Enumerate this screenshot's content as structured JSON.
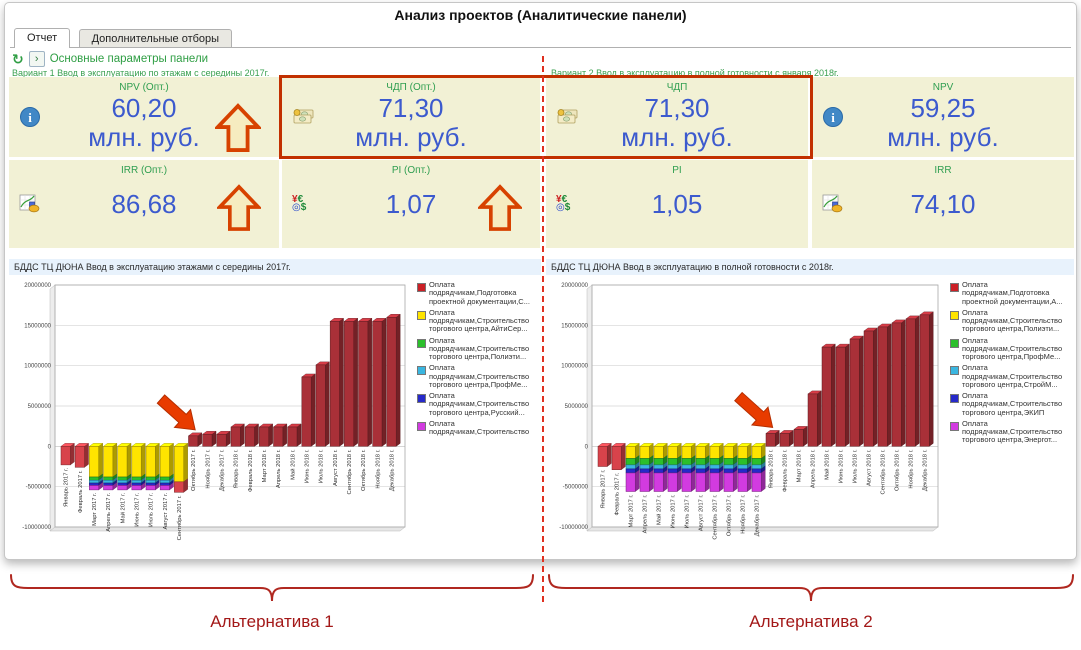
{
  "window": {
    "title": "Анализ проектов (Аналитические панели)"
  },
  "tabs": [
    {
      "label": "Отчет",
      "active": true
    },
    {
      "label": "Дополнительные отборы",
      "active": false
    }
  ],
  "toolbar": {
    "refresh_glyph": "↻",
    "expand_glyph": "›",
    "panel_params_label": "Основные параметры панели"
  },
  "variants": {
    "v1": "Вариант 1 Ввод в эксплуатацию по этажам с середины 2017г.",
    "v2": "Вариант 2 Ввод в эксплуатацию в полной готовности с января 2018г."
  },
  "kpis": [
    {
      "label": "NPV (Опт.)",
      "value": "60,20",
      "unit": "млн. руб.",
      "icon": "info",
      "arrow": true
    },
    {
      "label": "ЧДП (Опт.)",
      "value": "71,30",
      "unit": "млн. руб.",
      "icon": "money",
      "arrow": false
    },
    {
      "label": "ЧДП",
      "value": "71,30",
      "unit": "млн. руб.",
      "icon": "money",
      "arrow": false
    },
    {
      "label": "NPV",
      "value": "59,25",
      "unit": "млн. руб.",
      "icon": "info",
      "arrow": false
    },
    {
      "label": "IRR (Опт.)",
      "value": "86,68",
      "icon": "chart",
      "arrow": true
    },
    {
      "label": "PI (Опт.)",
      "value": "1,07",
      "icon": "currency",
      "arrow": true
    },
    {
      "label": "PI",
      "value": "1,05",
      "icon": "currency",
      "arrow": false
    },
    {
      "label": "IRR",
      "value": "74,10",
      "icon": "chart",
      "arrow": false
    }
  ],
  "footer": {
    "alt1": "Альтернатива 1",
    "alt2": "Альтернатива 2"
  },
  "colors": {
    "accent_green": "#2f9e44",
    "value_blue": "#3c5ace",
    "highlight_border": "#c23000",
    "divider_red": "#e03020",
    "arrow": "#e83b00",
    "brace": "#b02820",
    "palette": {
      "red": "#d8434b",
      "dark": "#a93038",
      "yellow": "#ffe400",
      "green": "#2bbf2b",
      "cyan": "#3ab6e0",
      "blue": "#2629c9",
      "magenta": "#d23be0"
    }
  },
  "chart_data": [
    {
      "type": "bar3d-stacked",
      "title": "БДДС ТЦ ДЮНА Ввод в эксплуатацию этажами с середины 2017г.",
      "ylim": [
        -10000000,
        20000000
      ],
      "yticks": [
        20000000,
        15000000,
        10000000,
        5000000,
        0,
        -5000000,
        -10000000
      ],
      "grid": true,
      "legend_position": "right",
      "arrow_index": 9,
      "bars": [
        {
          "m": "Январь 2017 г.",
          "v": [
            [
              "red",
              -2300000
            ]
          ]
        },
        {
          "m": "Февраль 2017 г.",
          "v": [
            [
              "red",
              -2600000
            ]
          ]
        },
        {
          "m": "Март 2017 г.",
          "v": [
            [
              "yellow",
              -3800000
            ],
            [
              "green",
              -400000
            ],
            [
              "cyan",
              -350000
            ],
            [
              "blue",
              -300000
            ],
            [
              "magenta",
              -550000
            ]
          ]
        },
        {
          "m": "Апрель 2017 г.",
          "v": [
            [
              "yellow",
              -3800000
            ],
            [
              "green",
              -400000
            ],
            [
              "cyan",
              -350000
            ],
            [
              "blue",
              -300000
            ],
            [
              "magenta",
              -550000
            ]
          ]
        },
        {
          "m": "Май 2017 г.",
          "v": [
            [
              "yellow",
              -3800000
            ],
            [
              "green",
              -400000
            ],
            [
              "cyan",
              -350000
            ],
            [
              "blue",
              -300000
            ],
            [
              "magenta",
              -550000
            ]
          ]
        },
        {
          "m": "Июнь 2017 г.",
          "v": [
            [
              "yellow",
              -3800000
            ],
            [
              "green",
              -400000
            ],
            [
              "cyan",
              -350000
            ],
            [
              "blue",
              -300000
            ],
            [
              "magenta",
              -550000
            ]
          ]
        },
        {
          "m": "Июль 2017 г.",
          "v": [
            [
              "yellow",
              -3800000
            ],
            [
              "green",
              -400000
            ],
            [
              "cyan",
              -350000
            ],
            [
              "blue",
              -300000
            ],
            [
              "magenta",
              -550000
            ]
          ]
        },
        {
          "m": "Август 2017 г.",
          "v": [
            [
              "yellow",
              -3800000
            ],
            [
              "green",
              -400000
            ],
            [
              "cyan",
              -350000
            ],
            [
              "blue",
              -300000
            ],
            [
              "magenta",
              -550000
            ]
          ]
        },
        {
          "m": "Сентябрь 2017 г.",
          "v": [
            [
              "yellow",
              -4400000
            ],
            [
              "red",
              -1300000
            ]
          ]
        },
        {
          "m": "Октябрь 2017 г.",
          "v": [
            [
              "dark",
              1300000
            ]
          ]
        },
        {
          "m": "Ноябрь 2017 г.",
          "v": [
            [
              "dark",
              1500000
            ]
          ]
        },
        {
          "m": "Декабрь 2017 г.",
          "v": [
            [
              "dark",
              1500000
            ]
          ]
        },
        {
          "m": "Январь 2018 г.",
          "v": [
            [
              "dark",
              2400000
            ]
          ]
        },
        {
          "m": "Февраль 2018 г.",
          "v": [
            [
              "dark",
              2400000
            ]
          ]
        },
        {
          "m": "Март 2018 г.",
          "v": [
            [
              "dark",
              2400000
            ]
          ]
        },
        {
          "m": "Апрель 2018 г.",
          "v": [
            [
              "dark",
              2400000
            ]
          ]
        },
        {
          "m": "Май 2018 г.",
          "v": [
            [
              "dark",
              2400000
            ]
          ]
        },
        {
          "m": "Июнь 2018 г.",
          "v": [
            [
              "dark",
              8600000
            ]
          ]
        },
        {
          "m": "Июль 2018 г.",
          "v": [
            [
              "dark",
              10100000
            ]
          ]
        },
        {
          "m": "Август 2018 г.",
          "v": [
            [
              "dark",
              15500000
            ]
          ]
        },
        {
          "m": "Сентябрь 2018 г.",
          "v": [
            [
              "dark",
              15500000
            ]
          ]
        },
        {
          "m": "Октябрь 2018 г.",
          "v": [
            [
              "dark",
              15500000
            ]
          ]
        },
        {
          "m": "Ноябрь 2018 г.",
          "v": [
            [
              "dark",
              15500000
            ]
          ]
        },
        {
          "m": "Декабрь 2018 г.",
          "v": [
            [
              "dark",
              16000000
            ]
          ]
        }
      ],
      "legend": [
        {
          "color": "#cb2026",
          "label": "Оплата подрядчикам,Подготовка проектной документации,С..."
        },
        {
          "color": "#ffe400",
          "label": "Оплата подрядчикам,Строительство торгового центра,АйтиСер..."
        },
        {
          "color": "#2bbf2b",
          "label": "Оплата подрядчикам,Строительство торгового центра,Полиэти..."
        },
        {
          "color": "#3ab6e0",
          "label": "Оплата подрядчикам,Строительство торгового центра,ПрофМе..."
        },
        {
          "color": "#2629c9",
          "label": "Оплата подрядчикам,Строительство торгового центра,Русский..."
        },
        {
          "color": "#d23be0",
          "label": "Оплата подрядчикам,Строительство"
        }
      ]
    },
    {
      "type": "bar3d-stacked",
      "title": "БДДС ТЦ ДЮНА  Ввод в эксплуатацию в полной готовности с 2018г.",
      "ylim": [
        -10000000,
        20000000
      ],
      "yticks": [
        20000000,
        15000000,
        10000000,
        5000000,
        0,
        -5000000,
        -10000000
      ],
      "grid": true,
      "legend_position": "right",
      "arrow_index": 12,
      "bars": [
        {
          "m": "Январь 2017 г.",
          "v": [
            [
              "red",
              -2500000
            ]
          ]
        },
        {
          "m": "Февраль 2017 г.",
          "v": [
            [
              "red",
              -2900000
            ]
          ]
        },
        {
          "m": "Март 2017 г.",
          "v": [
            [
              "yellow",
              -1500000
            ],
            [
              "green",
              -800000
            ],
            [
              "cyan",
              -500000
            ],
            [
              "blue",
              -500000
            ],
            [
              "magenta",
              -2300000
            ]
          ]
        },
        {
          "m": "Апрель 2017 г.",
          "v": [
            [
              "yellow",
              -1500000
            ],
            [
              "green",
              -800000
            ],
            [
              "cyan",
              -500000
            ],
            [
              "blue",
              -500000
            ],
            [
              "magenta",
              -2300000
            ]
          ]
        },
        {
          "m": "Май 2017 г.",
          "v": [
            [
              "yellow",
              -1500000
            ],
            [
              "green",
              -800000
            ],
            [
              "cyan",
              -500000
            ],
            [
              "blue",
              -500000
            ],
            [
              "magenta",
              -2300000
            ]
          ]
        },
        {
          "m": "Июнь 2017 г.",
          "v": [
            [
              "yellow",
              -1500000
            ],
            [
              "green",
              -800000
            ],
            [
              "cyan",
              -500000
            ],
            [
              "blue",
              -500000
            ],
            [
              "magenta",
              -2300000
            ]
          ]
        },
        {
          "m": "Июль 2017 г.",
          "v": [
            [
              "yellow",
              -1500000
            ],
            [
              "green",
              -800000
            ],
            [
              "cyan",
              -500000
            ],
            [
              "blue",
              -500000
            ],
            [
              "magenta",
              -2300000
            ]
          ]
        },
        {
          "m": "Август 2017 г.",
          "v": [
            [
              "yellow",
              -1500000
            ],
            [
              "green",
              -800000
            ],
            [
              "cyan",
              -500000
            ],
            [
              "blue",
              -500000
            ],
            [
              "magenta",
              -2300000
            ]
          ]
        },
        {
          "m": "Сентябрь 2017 г.",
          "v": [
            [
              "yellow",
              -1500000
            ],
            [
              "green",
              -800000
            ],
            [
              "cyan",
              -500000
            ],
            [
              "blue",
              -500000
            ],
            [
              "magenta",
              -2300000
            ]
          ]
        },
        {
          "m": "Октябрь 2017 г.",
          "v": [
            [
              "yellow",
              -1500000
            ],
            [
              "green",
              -800000
            ],
            [
              "cyan",
              -500000
            ],
            [
              "blue",
              -500000
            ],
            [
              "magenta",
              -2300000
            ]
          ]
        },
        {
          "m": "Ноябрь 2017 г.",
          "v": [
            [
              "yellow",
              -1500000
            ],
            [
              "green",
              -800000
            ],
            [
              "cyan",
              -500000
            ],
            [
              "blue",
              -500000
            ],
            [
              "magenta",
              -2300000
            ]
          ]
        },
        {
          "m": "Декабрь 2017 г.",
          "v": [
            [
              "yellow",
              -1500000
            ],
            [
              "green",
              -800000
            ],
            [
              "cyan",
              -500000
            ],
            [
              "blue",
              -500000
            ],
            [
              "magenta",
              -2300000
            ]
          ]
        },
        {
          "m": "Январь 2018 г.",
          "v": [
            [
              "dark",
              1600000
            ]
          ]
        },
        {
          "m": "Февраль 2018 г.",
          "v": [
            [
              "dark",
              1600000
            ]
          ]
        },
        {
          "m": "Март 2018 г.",
          "v": [
            [
              "dark",
              2100000
            ]
          ]
        },
        {
          "m": "Апрель 2018 г.",
          "v": [
            [
              "dark",
              6500000
            ]
          ]
        },
        {
          "m": "Май 2018 г.",
          "v": [
            [
              "dark",
              12300000
            ]
          ]
        },
        {
          "m": "Июнь 2018 г.",
          "v": [
            [
              "dark",
              12300000
            ]
          ]
        },
        {
          "m": "Июль 2018 г.",
          "v": [
            [
              "dark",
              13300000
            ]
          ]
        },
        {
          "m": "Август 2018 г.",
          "v": [
            [
              "dark",
              14300000
            ]
          ]
        },
        {
          "m": "Сентябрь 2018 г.",
          "v": [
            [
              "dark",
              14800000
            ]
          ]
        },
        {
          "m": "Октябрь 2018 г.",
          "v": [
            [
              "dark",
              15300000
            ]
          ]
        },
        {
          "m": "Ноябрь 2018 г.",
          "v": [
            [
              "dark",
              15800000
            ]
          ]
        },
        {
          "m": "Декабрь 2018 г.",
          "v": [
            [
              "dark",
              16300000
            ]
          ]
        }
      ],
      "legend": [
        {
          "color": "#cb2026",
          "label": "Оплата подрядчикам,Подготовка проектной документации,А..."
        },
        {
          "color": "#ffe400",
          "label": "Оплата подрядчикам,Строительство торгового центра,Полиэти..."
        },
        {
          "color": "#2bbf2b",
          "label": "Оплата подрядчикам,Строительство торгового центра,ПрофМе..."
        },
        {
          "color": "#3ab6e0",
          "label": "Оплата подрядчикам,Строительство торгового центра,СтройМ..."
        },
        {
          "color": "#2629c9",
          "label": "Оплата подрядчикам,Строительство торгового центра,ЭКИП"
        },
        {
          "color": "#d23be0",
          "label": "Оплата подрядчикам,Строительство торгового центра,Энергот..."
        }
      ]
    }
  ]
}
